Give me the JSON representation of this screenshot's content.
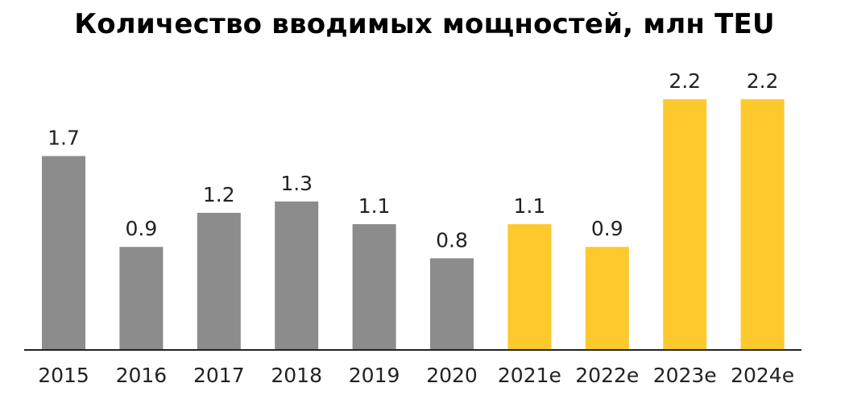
{
  "chart_data": {
    "type": "bar",
    "title": "Количество вводимых мощностей, млн TEU",
    "xlabel": "",
    "ylabel": "",
    "categories": [
      "2015",
      "2016",
      "2017",
      "2018",
      "2019",
      "2020",
      "2021e",
      "2022e",
      "2023e",
      "2024e"
    ],
    "values": [
      1.7,
      0.9,
      1.2,
      1.3,
      1.1,
      0.8,
      1.1,
      0.9,
      2.2,
      2.2
    ],
    "value_labels": [
      "1.7",
      "0.9",
      "1.2",
      "1.3",
      "1.1",
      "0.8",
      "1.1",
      "0.9",
      "2.2",
      "2.2"
    ],
    "bar_colors": [
      "#8c8c8c",
      "#8c8c8c",
      "#8c8c8c",
      "#8c8c8c",
      "#8c8c8c",
      "#8c8c8c",
      "#fdc92c",
      "#fdc92c",
      "#fdc92c",
      "#fdc92c"
    ],
    "ylim": [
      0,
      2.3
    ],
    "grid": false,
    "legend": "none"
  },
  "colors": {
    "actual": "#8c8c8c",
    "forecast": "#fdc92c",
    "axis": "#222222"
  }
}
